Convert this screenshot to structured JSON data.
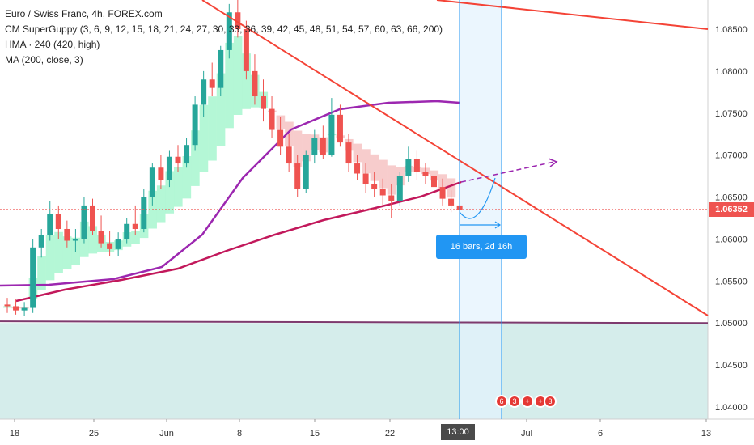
{
  "chart_data": {
    "type": "candlestick",
    "symbol": "Euro / Swiss Franc, 4h, FOREX.com",
    "indicators": [
      "CM SuperGuppy (3, 6, 9, 12, 15, 18, 21, 24, 27, 30, 33, 36, 39, 42, 45, 48, 51, 54, 57, 60, 63, 66, 200)",
      "HMA · 240 (420, high)",
      "MA (200, close, 3)"
    ],
    "last_price": "1.06352",
    "ylim": [
      1.0375,
      1.0885
    ],
    "y_ticks": [
      "1.08500",
      "1.08000",
      "1.07500",
      "1.07000",
      "1.06500",
      "1.06000",
      "1.05500",
      "1.05000",
      "1.04500",
      "1.04000"
    ],
    "x_ticks": [
      "18",
      "25",
      "Jun",
      "8",
      "15",
      "22",
      "13:00",
      "Jul",
      "6",
      "13"
    ],
    "date_range_label": "16 bars, 2d 16h",
    "highlighted_time": "13:00",
    "event_badges": [
      "6",
      "3",
      "3"
    ],
    "colors": {
      "up": "#26a69a",
      "down": "#ef5350",
      "trendline": "#f44336",
      "hma": "#9c27b0",
      "ma": "#c2185b",
      "support": "#7e3a6e",
      "range": "#2196f3"
    },
    "candles": [
      {
        "o": 1.0522,
        "h": 1.053,
        "l": 1.0512,
        "c": 1.052
      },
      {
        "o": 1.052,
        "h": 1.0528,
        "l": 1.051,
        "c": 1.0515
      },
      {
        "o": 1.0515,
        "h": 1.0525,
        "l": 1.0508,
        "c": 1.0518
      },
      {
        "o": 1.0518,
        "h": 1.06,
        "l": 1.0512,
        "c": 1.059
      },
      {
        "o": 1.059,
        "h": 1.0612,
        "l": 1.0578,
        "c": 1.0605
      },
      {
        "o": 1.0605,
        "h": 1.0645,
        "l": 1.0598,
        "c": 1.063
      },
      {
        "o": 1.063,
        "h": 1.064,
        "l": 1.06,
        "c": 1.0612
      },
      {
        "o": 1.0612,
        "h": 1.0622,
        "l": 1.059,
        "c": 1.0598
      },
      {
        "o": 1.0598,
        "h": 1.0612,
        "l": 1.0585,
        "c": 1.06
      },
      {
        "o": 1.06,
        "h": 1.065,
        "l": 1.0595,
        "c": 1.064
      },
      {
        "o": 1.064,
        "h": 1.0648,
        "l": 1.0605,
        "c": 1.061
      },
      {
        "o": 1.061,
        "h": 1.0628,
        "l": 1.059,
        "c": 1.0595
      },
      {
        "o": 1.0595,
        "h": 1.061,
        "l": 1.058,
        "c": 1.0588
      },
      {
        "o": 1.0588,
        "h": 1.0608,
        "l": 1.058,
        "c": 1.06
      },
      {
        "o": 1.06,
        "h": 1.0625,
        "l": 1.0595,
        "c": 1.0618
      },
      {
        "o": 1.0618,
        "h": 1.064,
        "l": 1.0605,
        "c": 1.0612
      },
      {
        "o": 1.0612,
        "h": 1.066,
        "l": 1.0608,
        "c": 1.065
      },
      {
        "o": 1.065,
        "h": 1.069,
        "l": 1.064,
        "c": 1.0685
      },
      {
        "o": 1.0685,
        "h": 1.07,
        "l": 1.066,
        "c": 1.067
      },
      {
        "o": 1.067,
        "h": 1.0705,
        "l": 1.0662,
        "c": 1.0698
      },
      {
        "o": 1.0698,
        "h": 1.0712,
        "l": 1.068,
        "c": 1.069
      },
      {
        "o": 1.069,
        "h": 1.072,
        "l": 1.0685,
        "c": 1.0712
      },
      {
        "o": 1.0712,
        "h": 1.077,
        "l": 1.0705,
        "c": 1.076
      },
      {
        "o": 1.076,
        "h": 1.08,
        "l": 1.0745,
        "c": 1.079
      },
      {
        "o": 1.079,
        "h": 1.081,
        "l": 1.077,
        "c": 1.078
      },
      {
        "o": 1.078,
        "h": 1.083,
        "l": 1.077,
        "c": 1.0825
      },
      {
        "o": 1.0825,
        "h": 1.088,
        "l": 1.0815,
        "c": 1.087
      },
      {
        "o": 1.087,
        "h": 1.0885,
        "l": 1.084,
        "c": 1.085
      },
      {
        "o": 1.085,
        "h": 1.086,
        "l": 1.079,
        "c": 1.08
      },
      {
        "o": 1.08,
        "h": 1.082,
        "l": 1.076,
        "c": 1.077
      },
      {
        "o": 1.077,
        "h": 1.079,
        "l": 1.074,
        "c": 1.0755
      },
      {
        "o": 1.0755,
        "h": 1.077,
        "l": 1.072,
        "c": 1.073
      },
      {
        "o": 1.073,
        "h": 1.0745,
        "l": 1.07,
        "c": 1.071
      },
      {
        "o": 1.071,
        "h": 1.0725,
        "l": 1.068,
        "c": 1.069
      },
      {
        "o": 1.069,
        "h": 1.07,
        "l": 1.065,
        "c": 1.066
      },
      {
        "o": 1.066,
        "h": 1.0705,
        "l": 1.0655,
        "c": 1.07
      },
      {
        "o": 1.07,
        "h": 1.073,
        "l": 1.069,
        "c": 1.072
      },
      {
        "o": 1.072,
        "h": 1.0735,
        "l": 1.0695,
        "c": 1.07
      },
      {
        "o": 1.07,
        "h": 1.0768,
        "l": 1.0698,
        "c": 1.0748
      },
      {
        "o": 1.0748,
        "h": 1.076,
        "l": 1.071,
        "c": 1.0715
      },
      {
        "o": 1.0715,
        "h": 1.0725,
        "l": 1.068,
        "c": 1.069
      },
      {
        "o": 1.069,
        "h": 1.07,
        "l": 1.067,
        "c": 1.0678
      },
      {
        "o": 1.0678,
        "h": 1.069,
        "l": 1.0655,
        "c": 1.0665
      },
      {
        "o": 1.0665,
        "h": 1.068,
        "l": 1.065,
        "c": 1.066
      },
      {
        "o": 1.066,
        "h": 1.0672,
        "l": 1.064,
        "c": 1.0652
      },
      {
        "o": 1.0652,
        "h": 1.0665,
        "l": 1.0625,
        "c": 1.0645
      },
      {
        "o": 1.0645,
        "h": 1.068,
        "l": 1.064,
        "c": 1.0675
      },
      {
        "o": 1.0675,
        "h": 1.071,
        "l": 1.0668,
        "c": 1.0695
      },
      {
        "o": 1.0695,
        "h": 1.0705,
        "l": 1.067,
        "c": 1.068
      },
      {
        "o": 1.068,
        "h": 1.069,
        "l": 1.0665,
        "c": 1.0675
      },
      {
        "o": 1.0675,
        "h": 1.0685,
        "l": 1.0655,
        "c": 1.0662
      },
      {
        "o": 1.0662,
        "h": 1.0672,
        "l": 1.064,
        "c": 1.0648
      },
      {
        "o": 1.0648,
        "h": 1.0658,
        "l": 1.0632,
        "c": 1.064
      },
      {
        "o": 1.064,
        "h": 1.065,
        "l": 1.063,
        "c": 1.0635
      }
    ]
  }
}
